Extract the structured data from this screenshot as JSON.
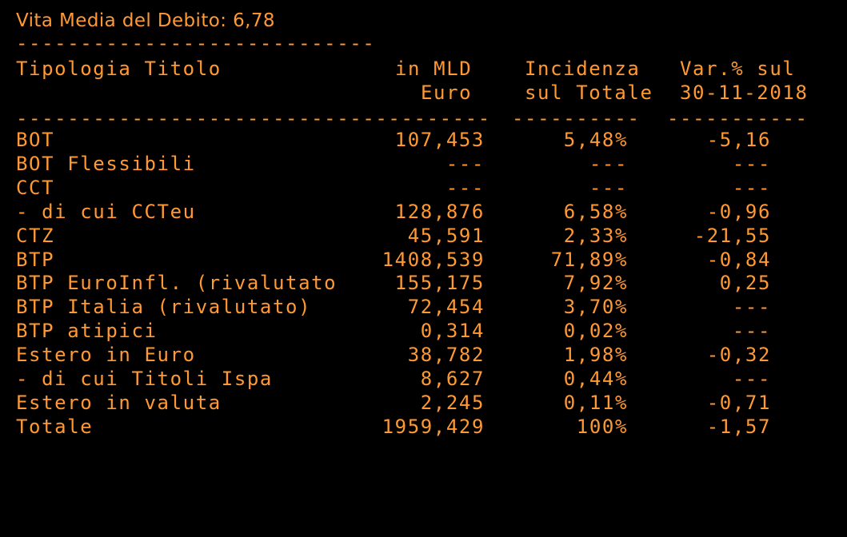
{
  "header": {
    "title": "Vita Media del Debito: 6,78",
    "top_rule": "----------------------------"
  },
  "columns": {
    "name_label": "Tipologia Titolo",
    "mld_line1": "in MLD",
    "mld_line2": "Euro",
    "inc_line1": "Incidenza",
    "inc_line2": "sul Totale",
    "var_line1": "Var.% sul",
    "var_line2": "30-11-2018"
  },
  "rules": {
    "name_rule": "-------------------------------------",
    "inc_rule": "----------",
    "var_rule": "-----------"
  },
  "rows": [
    {
      "name": "BOT",
      "mld": "107,453",
      "inc": "5,48%",
      "var": "-5,16"
    },
    {
      "name": "BOT Flessibili",
      "mld": "---",
      "inc": "---",
      "var": "---"
    },
    {
      "name": "CCT",
      "mld": "---",
      "inc": "---",
      "var": "---"
    },
    {
      "name": "- di cui CCTeu",
      "mld": "128,876",
      "inc": "6,58%",
      "var": "-0,96"
    },
    {
      "name": "CTZ",
      "mld": "45,591",
      "inc": "2,33%",
      "var": "-21,55"
    },
    {
      "name": "BTP",
      "mld": "1408,539",
      "inc": "71,89%",
      "var": "-0,84"
    },
    {
      "name": "BTP EuroInfl. (rivalutato",
      "mld": "155,175",
      "inc": "7,92%",
      "var": "0,25"
    },
    {
      "name": "BTP Italia (rivalutato)",
      "mld": "72,454",
      "inc": "3,70%",
      "var": "---"
    },
    {
      "name": "BTP atipici",
      "mld": "0,314",
      "inc": "0,02%",
      "var": "---"
    },
    {
      "name": "Estero in Euro",
      "mld": "38,782",
      "inc": "1,98%",
      "var": "-0,32"
    },
    {
      "name": "- di cui Titoli Ispa",
      "mld": "8,627",
      "inc": "0,44%",
      "var": "---"
    },
    {
      "name": "Estero in valuta",
      "mld": "2,245",
      "inc": "0,11%",
      "var": "-0,71"
    },
    {
      "name": "Totale",
      "mld": "1959,429",
      "inc": "100%",
      "var": "-1,57"
    }
  ],
  "colors": {
    "background": "#000000",
    "text": "#ff9933"
  }
}
